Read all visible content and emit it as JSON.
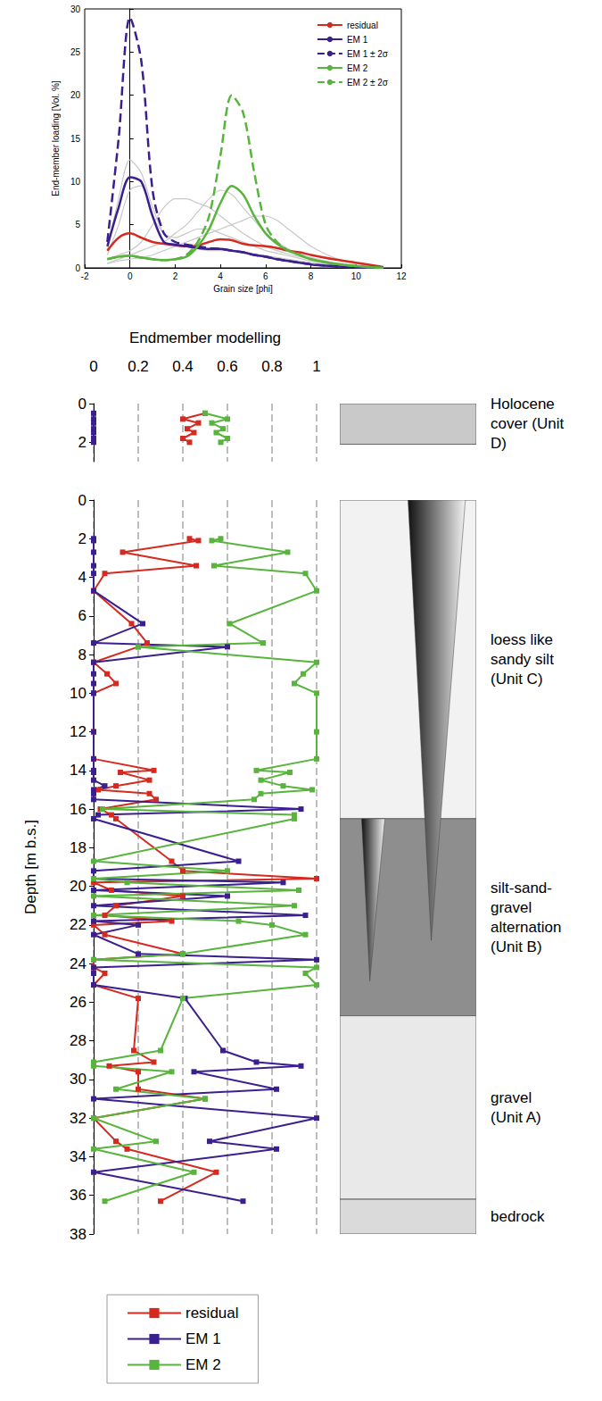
{
  "chart_data": [
    {
      "type": "line",
      "xlabel": "Grain size [phi]",
      "ylabel": "End-member loading [Vol. %]",
      "xlim": [
        -2,
        12
      ],
      "xticks": [
        -2,
        0,
        2,
        4,
        6,
        8,
        10,
        12
      ],
      "ylim": [
        0,
        30
      ],
      "yticks": [
        0,
        5,
        10,
        15,
        20,
        25,
        30
      ],
      "legend": "upper right",
      "x": [
        -1,
        -0.5,
        0,
        0.5,
        1,
        1.5,
        2,
        2.5,
        3,
        3.5,
        4,
        4.5,
        5,
        5.5,
        6,
        6.5,
        7,
        7.5,
        8,
        9,
        10,
        11.2
      ],
      "series": [
        {
          "color": "#c8c8c8",
          "values": [
            2,
            8,
            12.5,
            11,
            7,
            4,
            3,
            2.5,
            2.2,
            2,
            2,
            2,
            1.8,
            1.6,
            1.4,
            1.2,
            1,
            0.8,
            0.6,
            0.3,
            0.1,
            0
          ]
        },
        {
          "color": "#c8c8c8",
          "values": [
            1,
            1.5,
            2,
            3,
            5,
            7,
            8,
            8,
            7.5,
            7,
            6,
            5,
            4,
            3.2,
            2.5,
            2,
            1.6,
            1.3,
            1,
            0.6,
            0.3,
            0
          ]
        },
        {
          "color": "#c8c8c8",
          "values": [
            0.5,
            1,
            1.5,
            2,
            2.5,
            3,
            4,
            5,
            6.5,
            8,
            9,
            8.5,
            7,
            5.5,
            4,
            3,
            2.2,
            1.6,
            1.2,
            0.6,
            0.3,
            0
          ]
        },
        {
          "color": "#c8c8c8",
          "values": [
            0.5,
            0.8,
            1,
            1.2,
            1.5,
            2,
            2.5,
            3,
            3.5,
            4,
            4.5,
            5,
            5.5,
            6,
            6,
            5.5,
            4.5,
            3.5,
            2.5,
            1.2,
            0.5,
            0.1
          ]
        },
        {
          "color": "#c8c8c8",
          "values": [
            1.5,
            5,
            9,
            9.5,
            6,
            4,
            3.5,
            4,
            4.5,
            4.5,
            4,
            3.5,
            3,
            2.5,
            2,
            1.7,
            1.4,
            1.1,
            0.8,
            0.4,
            0.2,
            0
          ]
        },
        {
          "name": "residual",
          "color": "#d42a20",
          "line_style": "solid",
          "values": [
            2,
            3.5,
            4,
            3.5,
            3,
            2.8,
            2.6,
            2.5,
            2.6,
            3,
            3.3,
            3.2,
            2.8,
            2.6,
            2.5,
            2.3,
            2,
            1.8,
            1.5,
            1,
            0.6,
            0.1
          ]
        },
        {
          "name": "EM 1",
          "color": "#3b1f8f",
          "line_style": "solid",
          "values": [
            2.5,
            7,
            10.5,
            10,
            6,
            3,
            2.7,
            2.5,
            2.3,
            2.2,
            2.2,
            2,
            1.8,
            1.5,
            1.3,
            1,
            0.8,
            0.6,
            0.4,
            0.2,
            0.05,
            0
          ]
        },
        {
          "name": "EM 1 ± 2σ",
          "color": "#3b1f8f",
          "line_style": "dashed",
          "values": [
            3,
            15,
            29,
            24,
            9,
            4,
            3,
            2.7,
            2.5,
            2.3,
            2.2,
            2,
            1.8,
            1.5,
            1.3,
            1,
            0.8,
            0.6,
            0.4,
            0.2,
            0.05,
            0
          ]
        },
        {
          "name": "EM 2",
          "color": "#58b43c",
          "line_style": "solid",
          "values": [
            1,
            1.3,
            1.4,
            1.2,
            1,
            0.9,
            1,
            1.3,
            2.5,
            4.5,
            7.5,
            9.5,
            8.5,
            6,
            4,
            2.8,
            2,
            1.5,
            1,
            0.5,
            0.2,
            0
          ]
        },
        {
          "name": "EM 2 ± 2σ",
          "color": "#58b43c",
          "line_style": "dashed",
          "values": [
            1,
            1.3,
            1.4,
            1.2,
            1,
            0.9,
            1,
            1.5,
            3,
            6,
            13,
            20,
            18,
            11,
            5,
            3,
            2,
            1.5,
            1,
            0.5,
            0.2,
            0
          ]
        }
      ]
    },
    {
      "type": "line",
      "xlabel": "Endmember modelling",
      "xlim": [
        0,
        1
      ],
      "xticks": [
        0,
        0.2,
        0.4,
        0.6,
        0.8,
        1
      ],
      "ylim": [
        0,
        3
      ],
      "yticks": [
        0,
        2
      ],
      "grid": true,
      "marker": "square",
      "y": [
        0.5,
        0.8,
        1.0,
        1.3,
        1.5,
        1.8,
        2.0
      ],
      "series": [
        {
          "name": "residual",
          "color": "#d42a20",
          "values": [
            0.5,
            0.4,
            0.47,
            0.42,
            0.45,
            0.4,
            0.43
          ]
        },
        {
          "name": "EM 1",
          "color": "#3b1f8f",
          "values": [
            0,
            0,
            0,
            0,
            0,
            0,
            0
          ]
        },
        {
          "name": "EM 2",
          "color": "#58b43c",
          "values": [
            0.5,
            0.6,
            0.53,
            0.58,
            0.55,
            0.6,
            0.57
          ]
        }
      ]
    },
    {
      "type": "line",
      "ylabel": "Depth [m b.s.]",
      "xlim": [
        0,
        1
      ],
      "xticks": [
        0,
        0.2,
        0.4,
        0.6,
        0.8,
        1
      ],
      "ylim": [
        0,
        38
      ],
      "yticks": [
        0,
        2,
        4,
        6,
        8,
        10,
        12,
        14,
        16,
        18,
        20,
        22,
        24,
        26,
        28,
        30,
        32,
        34,
        36,
        38
      ],
      "grid": true,
      "marker": "square",
      "tick_labels": "y",
      "legend": "bottom",
      "y": [
        2.0,
        2.1,
        2.7,
        3.4,
        3.8,
        4.7,
        6.4,
        7.4,
        7.6,
        8.4,
        9.0,
        9.5,
        10.0,
        12.0,
        13.4,
        14.0,
        14.1,
        14.5,
        14.8,
        15.0,
        15.2,
        15.5,
        16.0,
        16.3,
        16.5,
        18.7,
        19.2,
        19.6,
        19.8,
        20.2,
        20.5,
        21.0,
        21.5,
        21.8,
        22.0,
        22.5,
        23.5,
        23.8,
        24.2,
        24.5,
        25.1,
        25.8,
        28.5,
        29.1,
        29.3,
        29.6,
        30.5,
        31.0,
        32.0,
        33.2,
        33.6,
        34.8,
        36.3
      ],
      "series": [
        {
          "name": "residual",
          "color": "#d42a20",
          "values": [
            0.43,
            0.47,
            0.13,
            0.46,
            0.05,
            0,
            0.17,
            0.24,
            0.2,
            0,
            0.06,
            0.1,
            0,
            0,
            0,
            0.27,
            0.12,
            0.25,
            0.1,
            0.02,
            0.25,
            0.28,
            0.03,
            0.08,
            0.1,
            0.35,
            0.4,
            1.0,
            0,
            0.08,
            0.4,
            0.1,
            0.05,
            0.35,
            0,
            0.05,
            0.4,
            0,
            0,
            0.05,
            0,
            0.2,
            0.18,
            0.27,
            0.07,
            0.2,
            0.2,
            0.5,
            0,
            0.1,
            0.15,
            0.55,
            0.3
          ]
        },
        {
          "name": "EM 1",
          "color": "#3b1f8f",
          "values": [
            0,
            0,
            0,
            0,
            0,
            0,
            0.22,
            0,
            0.6,
            0,
            0,
            0,
            0,
            0,
            0,
            0,
            0,
            0,
            0.05,
            0,
            0,
            0,
            0.93,
            0.02,
            0,
            0.65,
            0,
            0,
            0.85,
            0,
            0.6,
            0,
            0.95,
            0,
            0.2,
            0,
            0.2,
            1.0,
            0,
            0,
            0,
            0.41,
            0.58,
            0.73,
            0.93,
            0.45,
            0.82,
            0,
            1.0,
            0.52,
            0.82,
            0,
            0.67
          ]
        },
        {
          "name": "EM 2",
          "color": "#58b43c",
          "values": [
            0.57,
            0.53,
            0.87,
            0.54,
            0.95,
            1.0,
            0.61,
            0.76,
            0.2,
            1.0,
            0.94,
            0.9,
            1.0,
            1.0,
            1.0,
            0.73,
            0.88,
            0.75,
            0.85,
            0.98,
            0.75,
            0.72,
            0.04,
            0.9,
            0.9,
            0,
            0.6,
            0,
            0.15,
            0.92,
            0,
            0.9,
            0,
            0.65,
            0.8,
            0.95,
            0.4,
            0,
            1.0,
            0.95,
            1.0,
            0.4,
            0.3,
            0,
            0,
            0.35,
            0.1,
            0.5,
            0,
            0.28,
            0,
            0.45,
            0.05
          ]
        }
      ]
    }
  ],
  "stratigraphy": {
    "holocene": [
      {
        "label": "Holocene cover (Unit D)",
        "top": 0,
        "bottom": 2.1
      }
    ],
    "units": [
      {
        "label": "loess like sandy silt (Unit C)",
        "top": 0,
        "bottom": 16.5
      },
      {
        "label": "silt-sand-gravel alternation (Unit B)",
        "top": 16.5,
        "bottom": 26.7
      },
      {
        "label": "gravel (Unit A)",
        "top": 26.7,
        "bottom": 36.2
      },
      {
        "label": "bedrock",
        "top": 36.2,
        "bottom": 38
      }
    ],
    "wedges": [
      {
        "top": 0,
        "bottom": 22.8
      },
      {
        "top": 16.5,
        "bottom": 24.9
      }
    ]
  }
}
